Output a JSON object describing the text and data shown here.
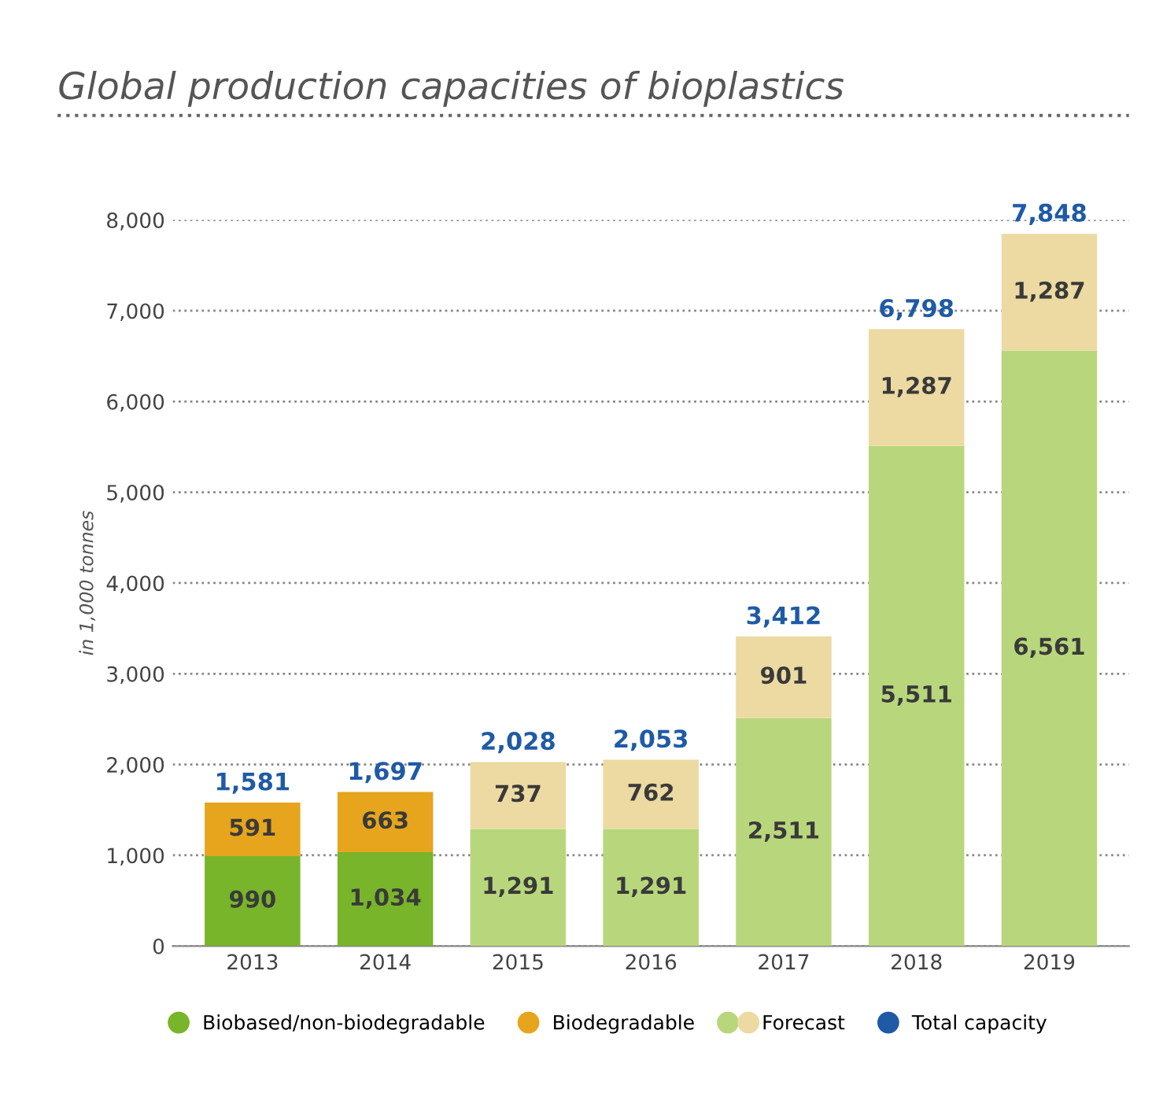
{
  "chart_data": {
    "type": "bar",
    "title": "Global production capacities of bioplastics",
    "ylabel": "in 1,000 tonnes",
    "categories": [
      "2013",
      "2014",
      "2015",
      "2016",
      "2017",
      "2018",
      "2019"
    ],
    "stacked": true,
    "grid": "y",
    "legend": "bottom",
    "ylim": [
      0,
      8000
    ],
    "totals": [
      "1,581",
      "1,697",
      "2,028",
      "2,053",
      "3,412",
      "6,798",
      "7,848"
    ],
    "yticks": [
      {
        "value": 0,
        "label": "0"
      },
      {
        "value": 1000,
        "label": "1,000"
      },
      {
        "value": 2000,
        "label": "2,000"
      },
      {
        "value": 3000,
        "label": "3,000"
      },
      {
        "value": 4000,
        "label": "4,000"
      },
      {
        "value": 5000,
        "label": "5,000"
      },
      {
        "value": 6000,
        "label": "6,000"
      },
      {
        "value": 7000,
        "label": "7,000"
      },
      {
        "value": 8000,
        "label": "8,000"
      }
    ],
    "series": [
      {
        "name": "Biobased/non-biodegradable",
        "color": "#78b52a",
        "values": [
          990,
          1034,
          null,
          null,
          null,
          null,
          null
        ],
        "value_labels": [
          "990",
          "1,034",
          null,
          null,
          null,
          null,
          null
        ]
      },
      {
        "name": "Biodegradable",
        "color": "#e6a51c",
        "values": [
          591,
          663,
          null,
          null,
          null,
          null,
          null
        ],
        "value_labels": [
          "591",
          "663",
          null,
          null,
          null,
          null,
          null
        ]
      },
      {
        "color": "#b8d77c",
        "values": [
          null,
          null,
          1291,
          1291,
          2511,
          5511,
          6561
        ],
        "value_labels": [
          null,
          null,
          "1,291",
          "1,291",
          "2,511",
          "5,511",
          "6,561"
        ]
      },
      {
        "name": "Forecast",
        "color": "#ecdaa2",
        "values": [
          null,
          null,
          737,
          762,
          901,
          1287,
          1287
        ],
        "value_labels": [
          null,
          null,
          "737",
          "762",
          "901",
          "1,287",
          "1,287"
        ]
      },
      {
        "name": "Total capacity",
        "color": "#1f5aa6",
        "values": [
          null,
          null,
          null,
          null,
          null,
          null,
          null
        ]
      }
    ]
  }
}
